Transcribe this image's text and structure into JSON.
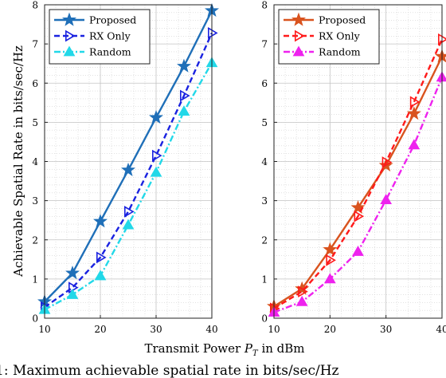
{
  "figure": {
    "xlabel": "Transmit Power P_T in dBm",
    "xlabel_main": "Transmit Power ",
    "xlabel_var": "P",
    "xlabel_sub": "T",
    "xlabel_tail": " in dBm",
    "ylabel": "Achievable Spatial Rate in bits/sec/Hz",
    "caption": "1: Maximum achievable spatial rate in bits/sec/Hz"
  },
  "chart_data": [
    {
      "type": "line",
      "x": [
        10,
        15,
        20,
        25,
        30,
        35,
        40
      ],
      "xlim": [
        10,
        40
      ],
      "ylim": [
        0,
        8
      ],
      "xticks": [
        "10",
        "20",
        "30",
        "40"
      ],
      "yticks": [
        "0",
        "1",
        "2",
        "3",
        "4",
        "5",
        "6",
        "7",
        "8"
      ],
      "grid": true,
      "legend": "top-left",
      "series": [
        {
          "name": "Proposed",
          "values": [
            0.42,
            1.15,
            2.47,
            3.78,
            5.12,
            6.43,
            7.85
          ],
          "color": "#1f6fb8",
          "dash": "solid",
          "marker": "star"
        },
        {
          "name": "RX Only",
          "values": [
            0.28,
            0.78,
            1.55,
            2.72,
            4.15,
            5.68,
            7.28
          ],
          "color": "#1a22e0",
          "dash": "dashed",
          "marker": "tri-right"
        },
        {
          "name": "Random",
          "values": [
            0.22,
            0.6,
            1.08,
            2.38,
            3.72,
            5.28,
            6.52
          ],
          "color": "#22d8e8",
          "dash": "dashdot",
          "marker": "tri-up"
        }
      ]
    },
    {
      "type": "line",
      "x": [
        10,
        15,
        20,
        25,
        30,
        35,
        40
      ],
      "xlim": [
        10,
        40
      ],
      "ylim": [
        0,
        8
      ],
      "xticks": [
        "10",
        "20",
        "30",
        "40"
      ],
      "yticks": [
        "0",
        "1",
        "2",
        "3",
        "4",
        "5",
        "6",
        "7",
        "8"
      ],
      "grid": true,
      "legend": "top-left",
      "series": [
        {
          "name": "Proposed",
          "values": [
            0.3,
            0.75,
            1.75,
            2.82,
            3.9,
            5.22,
            6.68
          ],
          "color": "#d9531e",
          "dash": "solid",
          "marker": "star"
        },
        {
          "name": "RX Only",
          "values": [
            0.25,
            0.68,
            1.48,
            2.6,
            3.98,
            5.52,
            7.12
          ],
          "color": "#ff1a1a",
          "dash": "dashed",
          "marker": "tri-right"
        },
        {
          "name": "Random",
          "values": [
            0.15,
            0.42,
            1.0,
            1.7,
            3.02,
            4.42,
            6.15
          ],
          "color": "#ee22ee",
          "dash": "dashdot",
          "marker": "tri-up"
        }
      ]
    }
  ]
}
